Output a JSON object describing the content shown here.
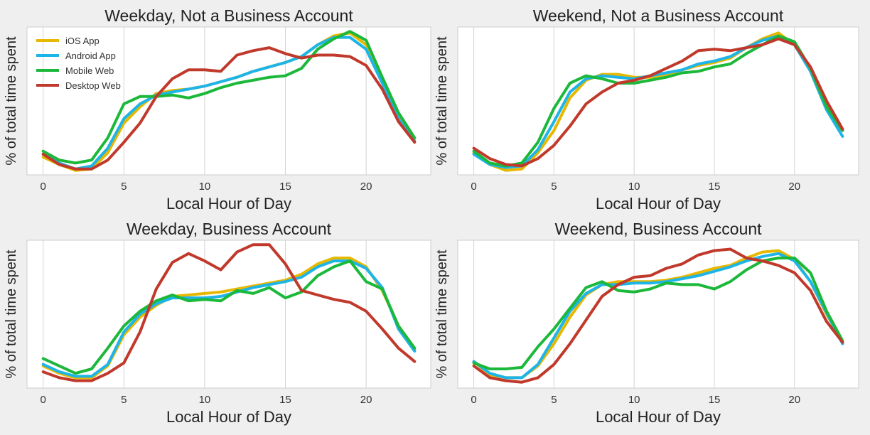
{
  "chart_data": [
    {
      "type": "line",
      "title": "Weekday, Not a Business Account",
      "xlabel": "Local Hour of Day",
      "ylabel": "% of total time spent",
      "xlim": [
        -1,
        24
      ],
      "ylim": [
        0,
        100
      ],
      "xticks": [
        0,
        5,
        10,
        15,
        20
      ],
      "grid": true,
      "legend": "top-left",
      "x": [
        0,
        1,
        2,
        3,
        4,
        5,
        6,
        7,
        8,
        9,
        10,
        11,
        12,
        13,
        14,
        15,
        16,
        17,
        18,
        19,
        20,
        21,
        22,
        23
      ],
      "series": [
        {
          "name": "iOS App",
          "color": "#e6b800",
          "values": [
            12,
            7,
            3,
            4,
            15,
            35,
            46,
            55,
            57,
            58,
            60,
            63,
            66,
            70,
            73,
            76,
            80,
            88,
            94,
            96,
            88,
            64,
            40,
            25
          ]
        },
        {
          "name": "Android App",
          "color": "#1db4e8",
          "values": [
            14,
            8,
            4,
            6,
            18,
            38,
            48,
            54,
            56,
            58,
            60,
            63,
            66,
            70,
            73,
            76,
            80,
            88,
            93,
            93,
            85,
            62,
            38,
            23
          ]
        },
        {
          "name": "Mobile Web",
          "color": "#1bb83a",
          "values": [
            16,
            10,
            8,
            10,
            25,
            48,
            53,
            53,
            54,
            52,
            55,
            59,
            62,
            64,
            66,
            67,
            72,
            85,
            92,
            97,
            91,
            66,
            42,
            25
          ]
        },
        {
          "name": "Desktop Web",
          "color": "#c0392b",
          "values": [
            14,
            7,
            4,
            4,
            10,
            22,
            35,
            53,
            65,
            71,
            71,
            70,
            81,
            84,
            86,
            82,
            79,
            81,
            81,
            80,
            74,
            58,
            36,
            22
          ]
        }
      ]
    },
    {
      "type": "line",
      "title": "Weekend, Not a Business Account",
      "xlabel": "Local Hour of Day",
      "ylabel": "% of total time spent",
      "xlim": [
        -1,
        24
      ],
      "ylim": [
        0,
        100
      ],
      "xticks": [
        0,
        5,
        10,
        15,
        20
      ],
      "grid": true,
      "x": [
        0,
        1,
        2,
        3,
        4,
        5,
        6,
        7,
        8,
        9,
        10,
        11,
        12,
        13,
        14,
        15,
        16,
        17,
        18,
        19,
        20,
        21,
        22,
        23
      ],
      "series": [
        {
          "name": "iOS App",
          "color": "#e6b800",
          "values": [
            15,
            7,
            3,
            4,
            15,
            30,
            52,
            64,
            68,
            68,
            66,
            66,
            68,
            71,
            74,
            76,
            79,
            86,
            92,
            96,
            88,
            70,
            44,
            30
          ]
        },
        {
          "name": "Android App",
          "color": "#1db4e8",
          "values": [
            14,
            7,
            5,
            6,
            17,
            36,
            56,
            65,
            67,
            66,
            65,
            67,
            69,
            71,
            75,
            77,
            80,
            86,
            91,
            94,
            88,
            70,
            44,
            26
          ]
        },
        {
          "name": "Mobile Web",
          "color": "#1bb83a",
          "values": [
            16,
            8,
            6,
            8,
            22,
            45,
            62,
            67,
            65,
            62,
            62,
            64,
            66,
            69,
            70,
            73,
            75,
            82,
            88,
            94,
            90,
            72,
            46,
            30
          ]
        },
        {
          "name": "Desktop Web",
          "color": "#c0392b",
          "values": [
            18,
            11,
            7,
            6,
            11,
            20,
            33,
            48,
            56,
            62,
            64,
            67,
            72,
            77,
            84,
            85,
            84,
            86,
            88,
            92,
            88,
            73,
            50,
            31
          ]
        }
      ]
    },
    {
      "type": "line",
      "title": "Weekday, Business Account",
      "xlabel": "Local Hour of Day",
      "ylabel": "% of total time spent",
      "xlim": [
        -1,
        24
      ],
      "ylim": [
        0,
        100
      ],
      "xticks": [
        0,
        5,
        10,
        15,
        20
      ],
      "grid": true,
      "x": [
        0,
        1,
        2,
        3,
        4,
        5,
        6,
        7,
        8,
        9,
        10,
        11,
        12,
        13,
        14,
        15,
        16,
        17,
        18,
        19,
        20,
        21,
        22,
        23
      ],
      "series": [
        {
          "name": "iOS App",
          "color": "#e6b800",
          "values": [
            15,
            10,
            7,
            7,
            15,
            36,
            48,
            56,
            62,
            63,
            64,
            65,
            67,
            69,
            71,
            73,
            77,
            84,
            88,
            88,
            82,
            66,
            42,
            26
          ]
        },
        {
          "name": "Android App",
          "color": "#1db4e8",
          "values": [
            16,
            11,
            8,
            8,
            16,
            38,
            50,
            57,
            61,
            61,
            61,
            62,
            65,
            68,
            70,
            72,
            75,
            82,
            86,
            86,
            81,
            68,
            40,
            25
          ]
        },
        {
          "name": "Mobile Web",
          "color": "#1bb83a",
          "values": [
            20,
            15,
            10,
            13,
            27,
            42,
            52,
            59,
            63,
            59,
            60,
            59,
            66,
            64,
            68,
            61,
            65,
            76,
            82,
            86,
            72,
            67,
            42,
            27
          ]
        },
        {
          "name": "Desktop Web",
          "color": "#c0392b",
          "values": [
            11,
            7,
            5,
            5,
            10,
            17,
            38,
            67,
            85,
            91,
            86,
            80,
            92,
            97,
            97,
            84,
            66,
            63,
            60,
            58,
            52,
            40,
            27,
            18
          ]
        }
      ]
    },
    {
      "type": "line",
      "title": "Weekend, Business Account",
      "xlabel": "Local Hour of Day",
      "ylabel": "% of total time spent",
      "xlim": [
        -1,
        24
      ],
      "ylim": [
        0,
        100
      ],
      "xticks": [
        0,
        5,
        10,
        15,
        20
      ],
      "grid": true,
      "x": [
        0,
        1,
        2,
        3,
        4,
        5,
        6,
        7,
        8,
        9,
        10,
        11,
        12,
        13,
        14,
        15,
        16,
        17,
        18,
        19,
        20,
        21,
        22,
        23
      ],
      "series": [
        {
          "name": "iOS App",
          "color": "#e6b800",
          "values": [
            18,
            9,
            7,
            7,
            15,
            30,
            48,
            63,
            70,
            72,
            72,
            72,
            73,
            75,
            78,
            81,
            83,
            88,
            92,
            93,
            87,
            72,
            50,
            31
          ]
        },
        {
          "name": "Android App",
          "color": "#1db4e8",
          "values": [
            18,
            10,
            7,
            7,
            16,
            34,
            52,
            64,
            70,
            70,
            71,
            71,
            72,
            74,
            76,
            79,
            82,
            86,
            89,
            91,
            86,
            72,
            51,
            30
          ]
        },
        {
          "name": "Mobile Web",
          "color": "#1bb83a",
          "values": [
            17,
            13,
            13,
            14,
            28,
            40,
            54,
            68,
            72,
            66,
            65,
            67,
            71,
            70,
            70,
            67,
            72,
            80,
            86,
            88,
            88,
            78,
            52,
            32
          ]
        },
        {
          "name": "Desktop Web",
          "color": "#c0392b",
          "values": [
            15,
            7,
            5,
            4,
            7,
            16,
            30,
            46,
            62,
            70,
            75,
            76,
            81,
            84,
            90,
            93,
            94,
            88,
            86,
            83,
            78,
            66,
            45,
            31
          ]
        }
      ]
    }
  ]
}
